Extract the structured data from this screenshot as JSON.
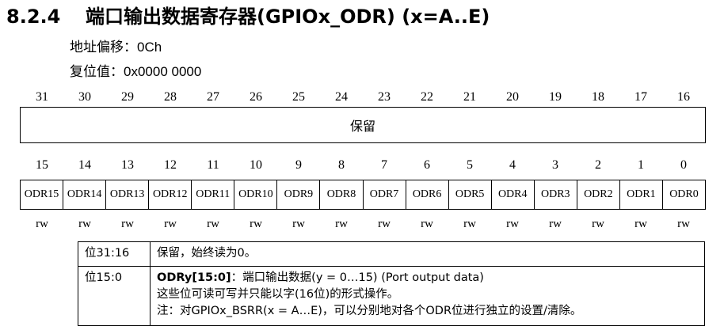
{
  "heading": {
    "number": "8.2.4",
    "title": "端口输出数据寄存器(GPIOx_ODR) (x=A..E)"
  },
  "offset": {
    "label": "地址偏移：",
    "value": "0Ch"
  },
  "reset": {
    "label": "复位值：",
    "value": "0x0000 0000"
  },
  "upper_bits": [
    "31",
    "30",
    "29",
    "28",
    "27",
    "26",
    "25",
    "24",
    "23",
    "22",
    "21",
    "20",
    "19",
    "18",
    "17",
    "16"
  ],
  "reserved_label": "保留",
  "lower_bits": [
    "15",
    "14",
    "13",
    "12",
    "11",
    "10",
    "9",
    "8",
    "7",
    "6",
    "5",
    "4",
    "3",
    "2",
    "1",
    "0"
  ],
  "fields": [
    "ODR15",
    "ODR14",
    "ODR13",
    "ODR12",
    "ODR11",
    "ODR10",
    "ODR9",
    "ODR8",
    "ODR7",
    "ODR6",
    "ODR5",
    "ODR4",
    "ODR3",
    "ODR2",
    "ODR1",
    "ODR0"
  ],
  "access": [
    "rw",
    "rw",
    "rw",
    "rw",
    "rw",
    "rw",
    "rw",
    "rw",
    "rw",
    "rw",
    "rw",
    "rw",
    "rw",
    "rw",
    "rw",
    "rw"
  ],
  "description": {
    "row1": {
      "bits": "位31:16",
      "text": "保留，始终读为0。"
    },
    "row2": {
      "bits": "位15:0",
      "field_name": "ODRy[15:0]",
      "field_desc": "：端口输出数据(y = 0…15) (Port output data)",
      "line2": "这些位可读可写并只能以字(16位)的形式操作。",
      "line3": "注：对GPIOx_BSRR(x = A…E)，可以分别地对各个ODR位进行独立的设置/清除。"
    }
  }
}
